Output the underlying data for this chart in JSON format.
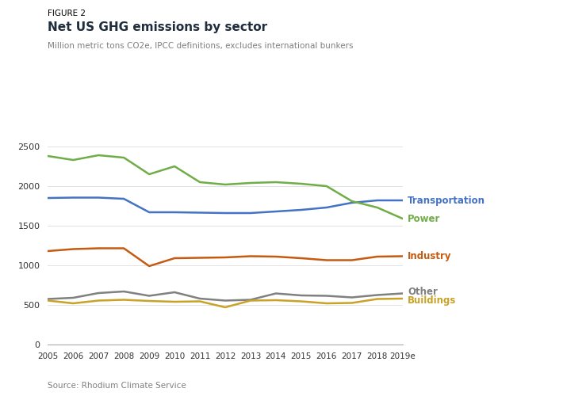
{
  "years": [
    2005,
    2006,
    2007,
    2008,
    2009,
    2010,
    2011,
    2012,
    2013,
    2014,
    2015,
    2016,
    2017,
    2018,
    2019
  ],
  "transportation": [
    1850,
    1855,
    1855,
    1840,
    1670,
    1670,
    1665,
    1660,
    1660,
    1680,
    1700,
    1730,
    1790,
    1820,
    1820
  ],
  "power": [
    2380,
    2330,
    2390,
    2360,
    2150,
    2250,
    2050,
    2020,
    2040,
    2050,
    2030,
    2000,
    1810,
    1730,
    1590
  ],
  "industry": [
    1180,
    1205,
    1215,
    1215,
    990,
    1090,
    1095,
    1100,
    1115,
    1110,
    1090,
    1065,
    1065,
    1110,
    1115
  ],
  "other": [
    575,
    590,
    650,
    670,
    615,
    660,
    580,
    555,
    565,
    645,
    620,
    615,
    595,
    625,
    645
  ],
  "buildings": [
    555,
    520,
    555,
    565,
    550,
    540,
    545,
    470,
    555,
    560,
    545,
    520,
    525,
    575,
    580
  ],
  "figure_label": "FIGURE 2",
  "title": "Net US GHG emissions by sector",
  "subtitle": "Million metric tons CO2e, IPCC definitions, excludes international bunkers",
  "source": "Source: Rhodium Climate Service",
  "colors": {
    "transportation": "#4472C4",
    "power": "#70AD47",
    "industry": "#C55A11",
    "other": "#808080",
    "buildings": "#C9A227"
  },
  "ylim": [
    0,
    2600
  ],
  "yticks": [
    0,
    500,
    1000,
    1500,
    2000,
    2500
  ],
  "figure_label_color": "#000000",
  "title_color": "#1F2D3D",
  "subtitle_color": "#7F7F7F",
  "source_color": "#7F7F7F",
  "line_width": 1.8,
  "background_color": "#FFFFFF"
}
